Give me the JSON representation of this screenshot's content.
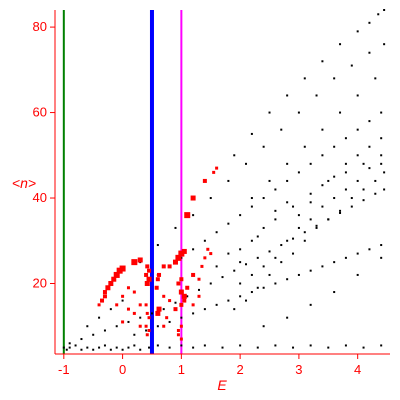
{
  "chart_data": {
    "type": "scatter",
    "title": "",
    "xlabel": "E",
    "ylabel": "<n>",
    "xlim": [
      -1.15,
      4.55
    ],
    "ylim": [
      3.5,
      84
    ],
    "xticks": [
      -1,
      0,
      1,
      2,
      3,
      4
    ],
    "yticks": [
      20,
      40,
      60,
      80
    ],
    "axis_color": "#ff0000",
    "grid": false,
    "vlines": [
      {
        "x": -1.0,
        "color": "#008000"
      },
      {
        "x": 0.5,
        "color": "#0000ff"
      },
      {
        "x": 1.0,
        "color": "#ff00ff"
      }
    ],
    "series": [
      {
        "color": "#000000",
        "marker": "dot",
        "points": [
          [
            -1.0,
            5
          ],
          [
            -0.95,
            4.5
          ],
          [
            -0.9,
            5
          ],
          [
            -0.8,
            5.5
          ],
          [
            -0.7,
            4.5
          ],
          [
            -0.6,
            5
          ],
          [
            -0.5,
            4.5
          ],
          [
            -0.4,
            5
          ],
          [
            -0.3,
            5.5
          ],
          [
            -0.2,
            4.5
          ],
          [
            -0.1,
            5
          ],
          [
            0.0,
            4.5
          ],
          [
            0.1,
            5
          ],
          [
            0.2,
            5.5
          ],
          [
            0.3,
            4.5
          ],
          [
            0.45,
            5
          ],
          [
            0.6,
            5.5
          ],
          [
            0.8,
            5
          ],
          [
            1.0,
            5.5
          ],
          [
            1.2,
            5
          ],
          [
            1.4,
            5.5
          ],
          [
            1.7,
            5
          ],
          [
            2.0,
            5.5
          ],
          [
            2.3,
            5
          ],
          [
            2.6,
            5.5
          ],
          [
            2.9,
            5
          ],
          [
            3.2,
            5.5
          ],
          [
            3.5,
            5
          ],
          [
            3.8,
            5.5
          ],
          [
            4.1,
            5
          ],
          [
            4.4,
            5.5
          ],
          [
            -0.9,
            6
          ],
          [
            -0.7,
            7
          ],
          [
            -0.5,
            8
          ],
          [
            -0.3,
            9
          ],
          [
            -0.1,
            10
          ],
          [
            0.1,
            11
          ],
          [
            0.3,
            12
          ],
          [
            0.5,
            13
          ],
          [
            0.7,
            14
          ],
          [
            0.9,
            15.5
          ],
          [
            1.1,
            17
          ],
          [
            1.3,
            18.5
          ],
          [
            1.5,
            20
          ],
          [
            1.7,
            21.5
          ],
          [
            1.9,
            23
          ],
          [
            2.1,
            24.5
          ],
          [
            2.3,
            26
          ],
          [
            2.5,
            27.5
          ],
          [
            2.7,
            29
          ],
          [
            2.9,
            30.5
          ],
          [
            3.1,
            32
          ],
          [
            3.3,
            33.5
          ],
          [
            3.5,
            35
          ],
          [
            3.7,
            36.5
          ],
          [
            3.9,
            38
          ],
          [
            4.1,
            39.5
          ],
          [
            4.3,
            41
          ],
          [
            4.45,
            42
          ],
          [
            -0.6,
            10
          ],
          [
            -0.4,
            12
          ],
          [
            -0.2,
            14
          ],
          [
            0.0,
            16
          ],
          [
            0.2,
            18
          ],
          [
            0.4,
            20
          ],
          [
            0.6,
            22
          ],
          [
            0.8,
            24
          ],
          [
            1.0,
            26
          ],
          [
            1.2,
            28
          ],
          [
            1.4,
            30
          ],
          [
            1.6,
            32
          ],
          [
            1.8,
            34
          ],
          [
            2.0,
            36
          ],
          [
            2.2,
            38
          ],
          [
            2.4,
            40
          ],
          [
            2.6,
            42
          ],
          [
            2.8,
            44
          ],
          [
            3.0,
            46
          ],
          [
            3.2,
            48
          ],
          [
            3.4,
            50
          ],
          [
            3.6,
            52
          ],
          [
            3.8,
            54
          ],
          [
            4.0,
            56
          ],
          [
            4.2,
            58
          ],
          [
            4.4,
            60
          ],
          [
            0.3,
            25
          ],
          [
            0.6,
            29
          ],
          [
            0.9,
            33
          ],
          [
            1.2,
            36
          ],
          [
            1.5,
            40
          ],
          [
            1.8,
            44
          ],
          [
            2.1,
            48
          ],
          [
            2.4,
            52
          ],
          [
            2.7,
            56
          ],
          [
            3.0,
            60
          ],
          [
            3.3,
            64
          ],
          [
            3.6,
            68
          ],
          [
            3.9,
            71
          ],
          [
            4.2,
            74
          ],
          [
            4.45,
            76
          ],
          [
            1.9,
            50
          ],
          [
            2.2,
            55
          ],
          [
            2.5,
            60
          ],
          [
            2.8,
            64
          ],
          [
            3.1,
            68
          ],
          [
            3.4,
            72
          ],
          [
            3.7,
            76
          ],
          [
            4.0,
            79
          ],
          [
            4.2,
            81
          ],
          [
            4.35,
            83
          ],
          [
            4.45,
            84
          ],
          [
            2.2,
            40
          ],
          [
            2.5,
            44
          ],
          [
            2.8,
            48
          ],
          [
            3.1,
            52
          ],
          [
            3.4,
            56
          ],
          [
            3.7,
            60
          ],
          [
            4.0,
            64
          ],
          [
            4.3,
            68
          ],
          [
            0.2,
            8
          ],
          [
            0.4,
            9
          ],
          [
            0.6,
            10
          ],
          [
            0.8,
            11
          ],
          [
            1.0,
            12
          ],
          [
            1.2,
            13
          ],
          [
            1.4,
            14
          ],
          [
            1.6,
            15
          ],
          [
            1.8,
            16
          ],
          [
            2.0,
            17
          ],
          [
            2.2,
            18
          ],
          [
            2.4,
            19
          ],
          [
            2.6,
            20
          ],
          [
            2.8,
            21
          ],
          [
            3.0,
            22
          ],
          [
            3.2,
            23
          ],
          [
            3.4,
            24
          ],
          [
            3.6,
            25
          ],
          [
            3.8,
            26
          ],
          [
            4.0,
            27
          ],
          [
            4.2,
            28
          ],
          [
            4.4,
            29
          ],
          [
            1.9,
            14
          ],
          [
            2.1,
            16
          ],
          [
            2.3,
            19
          ],
          [
            2.5,
            22
          ],
          [
            2.7,
            25
          ],
          [
            2.9,
            27
          ],
          [
            3.1,
            30
          ],
          [
            3.3,
            33
          ],
          [
            3.5,
            35
          ],
          [
            3.7,
            37
          ],
          [
            3.9,
            40
          ],
          [
            4.1,
            42
          ],
          [
            4.3,
            44
          ],
          [
            4.45,
            46
          ],
          [
            2.0,
            28
          ],
          [
            2.3,
            31
          ],
          [
            2.6,
            35
          ],
          [
            2.9,
            38
          ],
          [
            3.2,
            41
          ],
          [
            3.5,
            44
          ],
          [
            3.8,
            46
          ],
          [
            4.1,
            48
          ],
          [
            4.4,
            50
          ],
          [
            2.4,
            10
          ],
          [
            2.8,
            12
          ],
          [
            3.2,
            15
          ],
          [
            3.6,
            18
          ],
          [
            4.0,
            22
          ],
          [
            4.4,
            26
          ],
          [
            1.6,
            24
          ],
          [
            1.8,
            27
          ],
          [
            2.0,
            25
          ],
          [
            2.2,
            30
          ],
          [
            2.4,
            33
          ],
          [
            2.6,
            37
          ],
          [
            2.8,
            39
          ],
          [
            3.0,
            36
          ],
          [
            3.2,
            39
          ],
          [
            3.4,
            43
          ],
          [
            3.6,
            45
          ],
          [
            3.8,
            48
          ],
          [
            4.0,
            50
          ],
          [
            4.2,
            52
          ],
          [
            4.4,
            54
          ],
          [
            2.0,
            20
          ],
          [
            2.2,
            22
          ],
          [
            2.4,
            24
          ],
          [
            2.6,
            26
          ],
          [
            2.8,
            30
          ],
          [
            3.0,
            33
          ],
          [
            3.2,
            35
          ],
          [
            3.4,
            38
          ],
          [
            3.6,
            40
          ],
          [
            3.8,
            42
          ],
          [
            4.0,
            44
          ],
          [
            4.2,
            47
          ],
          [
            4.4,
            48
          ]
        ]
      },
      {
        "color": "#ff0000",
        "marker": "square",
        "points": [
          [
            -0.3,
            18,
            4
          ],
          [
            -0.25,
            19,
            5
          ],
          [
            -0.2,
            20,
            5
          ],
          [
            -0.15,
            21,
            5
          ],
          [
            -0.1,
            22,
            6
          ],
          [
            -0.05,
            23,
            6
          ],
          [
            0.0,
            23.5,
            6
          ],
          [
            -0.3,
            17,
            4
          ],
          [
            -0.35,
            16,
            4
          ],
          [
            -0.4,
            15,
            3
          ],
          [
            0.2,
            25,
            6
          ],
          [
            0.3,
            25.5,
            5
          ],
          [
            0.42,
            20,
            5
          ],
          [
            0.45,
            21,
            5
          ],
          [
            0.4,
            22,
            4
          ],
          [
            0.45,
            23,
            4
          ],
          [
            0.42,
            24,
            4
          ],
          [
            0.4,
            15,
            3
          ],
          [
            0.42,
            13,
            3
          ],
          [
            0.45,
            12,
            3
          ],
          [
            0.4,
            10,
            3
          ],
          [
            0.42,
            8,
            3
          ],
          [
            0.45,
            9,
            3
          ],
          [
            0.2,
            13,
            3
          ],
          [
            0.3,
            15,
            3
          ],
          [
            0.3,
            10,
            3
          ],
          [
            0.2,
            18,
            3
          ],
          [
            0.1,
            14,
            3
          ],
          [
            0.1,
            19,
            3
          ],
          [
            0.0,
            17,
            3
          ],
          [
            0.0,
            11,
            3
          ],
          [
            -0.1,
            15,
            3
          ],
          [
            0.6,
            13,
            5
          ],
          [
            0.62,
            14,
            5
          ],
          [
            0.58,
            19,
            4
          ],
          [
            0.6,
            21,
            4
          ],
          [
            0.62,
            22,
            4
          ],
          [
            0.7,
            24,
            4
          ],
          [
            0.8,
            24,
            4
          ],
          [
            0.9,
            25,
            5
          ],
          [
            0.7,
            17,
            3
          ],
          [
            0.8,
            16,
            3
          ],
          [
            0.75,
            12,
            3
          ],
          [
            0.7,
            10,
            3
          ],
          [
            0.95,
            26,
            6
          ],
          [
            1.0,
            27,
            6
          ],
          [
            1.05,
            27.5,
            5
          ],
          [
            1.1,
            19,
            4
          ],
          [
            1.0,
            18,
            5
          ],
          [
            1.05,
            17,
            5
          ],
          [
            0.95,
            20,
            4
          ],
          [
            1.0,
            21,
            4
          ],
          [
            0.9,
            14,
            4
          ],
          [
            1.0,
            15,
            4
          ],
          [
            1.05,
            16,
            4
          ],
          [
            0.95,
            9,
            3
          ],
          [
            1.0,
            10,
            3
          ],
          [
            1.0,
            7,
            3
          ],
          [
            0.95,
            8,
            3
          ],
          [
            1.1,
            36,
            6
          ],
          [
            1.2,
            40,
            5
          ],
          [
            1.4,
            44,
            4
          ],
          [
            1.55,
            46,
            3
          ],
          [
            1.6,
            47,
            3
          ],
          [
            1.2,
            22,
            4
          ],
          [
            1.3,
            21,
            3
          ],
          [
            1.35,
            24,
            3
          ],
          [
            1.4,
            26,
            3
          ],
          [
            1.5,
            27,
            3
          ],
          [
            1.45,
            28,
            3
          ],
          [
            1.2,
            15,
            3
          ],
          [
            1.3,
            17,
            3
          ]
        ]
      }
    ]
  }
}
